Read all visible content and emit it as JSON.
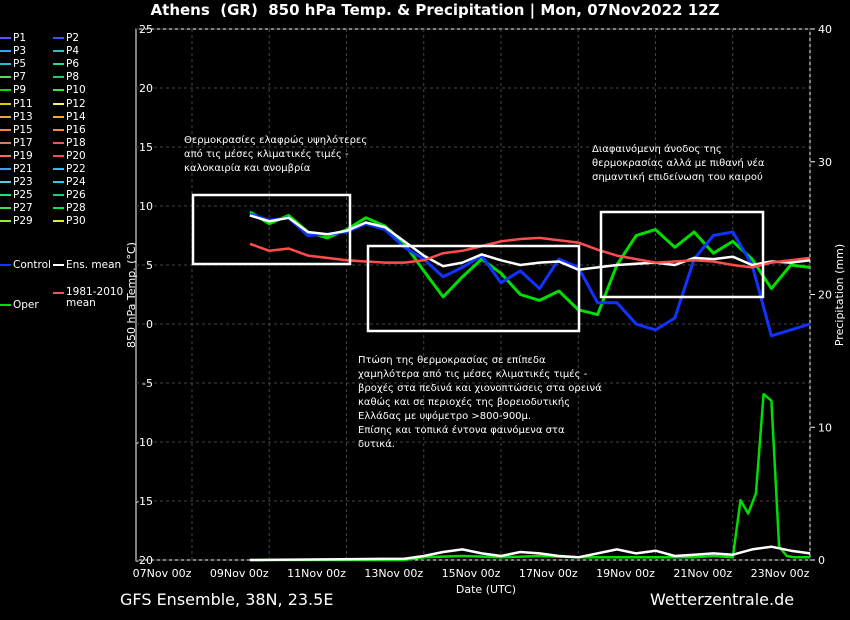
{
  "chart_data": {
    "type": "line",
    "title": "Athens  (GR)  850 hPa Temp. & Precipitation | Mon, 07Nov2022 12Z",
    "ylabel": "850 hPa Temp. (°C)",
    "y2label": "Precipitation (mm)",
    "xlabel": "Date (UTC)",
    "ylim": [
      -20,
      25
    ],
    "y2lim": [
      0,
      40
    ],
    "yticks": [
      "25",
      "20",
      "15",
      "10",
      "5",
      "0",
      "-5",
      "-10",
      "-15",
      "-20"
    ],
    "y2ticks": [
      "40",
      "30",
      "20",
      "10",
      "0"
    ],
    "xlim": [
      0,
      16
    ],
    "xticks": [
      {
        "day": 0,
        "label": "07Nov 00z"
      },
      {
        "day": 2,
        "label": "09Nov 00z"
      },
      {
        "day": 4,
        "label": "11Nov 00z"
      },
      {
        "day": 6,
        "label": "13Nov 00z"
      },
      {
        "day": 8,
        "label": "15Nov 00z"
      },
      {
        "day": 10,
        "label": "17Nov 00z"
      },
      {
        "day": 12,
        "label": "19Nov 00z"
      },
      {
        "day": 14,
        "label": "21Nov 00z"
      },
      {
        "day": 16,
        "label": "23Nov 00z"
      }
    ],
    "grid": true,
    "legend_position": "left",
    "legend": [
      "P1",
      "P2",
      "P3",
      "P4",
      "P5",
      "P6",
      "P7",
      "P8",
      "P9",
      "P10",
      "P11",
      "P12",
      "P13",
      "P14",
      "P15",
      "P16",
      "P17",
      "P18",
      "P19",
      "P20",
      "P21",
      "P22",
      "P23",
      "P24",
      "P25",
      "P26",
      "P27",
      "P28",
      "P29",
      "P30",
      "Control",
      "Ens. mean",
      "Oper",
      "1981-2010 mean"
    ],
    "series": [
      {
        "name": "Oper",
        "color": "#00dd00",
        "x": [
          1.5,
          2,
          2.5,
          3,
          3.5,
          4,
          4.5,
          5,
          5.5,
          6,
          6.5,
          7,
          7.5,
          8,
          8.5,
          9,
          9.5,
          10,
          10.5,
          11,
          11.5,
          12,
          12.5,
          13,
          13.5,
          14,
          14.5,
          15,
          15.5,
          16
        ],
        "y": [
          9.5,
          8.5,
          9.2,
          7.8,
          7.3,
          8.0,
          9.0,
          8.3,
          6.8,
          4.5,
          2.3,
          4.0,
          5.5,
          4.3,
          2.5,
          2.0,
          2.8,
          1.2,
          0.8,
          5.0,
          7.5,
          8.0,
          6.5,
          7.8,
          6.0,
          7.0,
          5.5,
          3.0,
          5.0,
          4.8
        ]
      },
      {
        "name": "Control",
        "color": "#1133ff",
        "x": [
          1.5,
          2,
          2.5,
          3,
          3.5,
          4,
          4.5,
          5,
          5.5,
          6,
          6.5,
          7,
          7.5,
          8,
          8.5,
          9,
          9.5,
          10,
          10.5,
          11,
          11.5,
          12,
          12.5,
          13,
          13.5,
          14,
          14.5,
          15,
          15.5,
          16
        ],
        "y": [
          9.3,
          8.8,
          9.0,
          7.5,
          7.6,
          7.8,
          8.5,
          8.0,
          6.5,
          5.5,
          4.0,
          4.8,
          5.8,
          3.5,
          4.5,
          3.0,
          5.5,
          4.8,
          1.8,
          1.8,
          0.0,
          -0.5,
          0.5,
          5.5,
          7.5,
          7.8,
          5.0,
          -1.0,
          -0.5,
          0.0
        ]
      },
      {
        "name": "Ens. mean",
        "color": "#ffffff",
        "x": [
          1.5,
          2,
          2.5,
          3,
          3.5,
          4,
          4.5,
          5,
          5.5,
          6,
          6.5,
          7,
          7.5,
          8,
          8.5,
          9,
          9.5,
          10,
          10.5,
          11,
          11.5,
          12,
          12.5,
          13,
          13.5,
          14,
          14.5,
          15,
          15.5,
          16
        ],
        "y": [
          9.2,
          8.7,
          9.0,
          7.8,
          7.6,
          7.9,
          8.6,
          8.2,
          7.0,
          5.8,
          4.9,
          5.2,
          5.9,
          5.4,
          5.0,
          5.2,
          5.3,
          4.6,
          4.8,
          5.0,
          5.1,
          5.2,
          5.0,
          5.6,
          5.5,
          5.7,
          5.0,
          5.3,
          5.2,
          5.4
        ]
      },
      {
        "name": "1981-2010 mean",
        "color": "#ff4d4d",
        "x": [
          1.5,
          2,
          2.5,
          3,
          3.5,
          4,
          4.5,
          5,
          5.5,
          6,
          6.5,
          7,
          7.5,
          8,
          8.5,
          9,
          9.5,
          10,
          10.5,
          11,
          11.5,
          12,
          12.5,
          13,
          13.5,
          14,
          14.5,
          15,
          15.5,
          16
        ],
        "y": [
          6.8,
          6.2,
          6.4,
          5.8,
          5.6,
          5.4,
          5.3,
          5.2,
          5.2,
          5.4,
          6.0,
          6.2,
          6.6,
          7.0,
          7.2,
          7.3,
          7.1,
          6.9,
          6.3,
          5.8,
          5.5,
          5.2,
          5.3,
          5.4,
          5.3,
          5.0,
          4.8,
          5.2,
          5.4,
          5.6
        ]
      },
      {
        "name": "Oper precipitation (mm)",
        "color": "#00dd00",
        "axis": "y2",
        "x": [
          1.5,
          5.5,
          6,
          7,
          8,
          9,
          10,
          11,
          12,
          13,
          13.5,
          14,
          14.2,
          14.4,
          14.6,
          14.8,
          15,
          15.2,
          15.4,
          15.6,
          16
        ],
        "y": [
          0,
          0,
          0.2,
          0.3,
          0.2,
          0.3,
          0.2,
          0.2,
          0.2,
          0.2,
          0.3,
          0.2,
          4.5,
          3.5,
          5.0,
          12.5,
          12.0,
          1.0,
          0.3,
          0.2,
          0.2
        ]
      },
      {
        "name": "Ens. mean precipitation (mm)",
        "color": "#ffffff",
        "axis": "y2",
        "x": [
          1.5,
          5.5,
          6,
          6.5,
          7,
          7.5,
          8,
          8.5,
          9,
          9.5,
          10,
          10.5,
          11,
          11.5,
          12,
          12.5,
          13,
          13.5,
          14,
          14.5,
          15,
          15.5,
          16
        ],
        "y": [
          0,
          0.1,
          0.3,
          0.6,
          0.8,
          0.5,
          0.3,
          0.6,
          0.5,
          0.3,
          0.2,
          0.5,
          0.8,
          0.5,
          0.7,
          0.3,
          0.4,
          0.5,
          0.4,
          0.8,
          1.0,
          0.7,
          0.5
        ]
      }
    ],
    "annotations": [
      {
        "id": "warm",
        "text": "Θερμοκρασίες ελαφρώς υψηλότερες\nαπό τις μέσες κλιματικές τιμές -\nκαλοκαιρία και ανομβρία"
      },
      {
        "id": "drop",
        "text": "Πτώση της θερμοκρασίας σε επίπεδα\nχαμηλότερα από τις μέσες κλιματικές τιμές -\nβροχές στα πεδινά και χιονοπτώσεις στα ορεινά\nκαθώς και σε περιοχές της βορειοδυτικής\nΕλλάδας με υψόμετρο >800-900μ.\nΕπίσης και τοπικά έντονα φαινόμενα στα\nδυτικά."
      },
      {
        "id": "rise",
        "text": "Διαφαινόμενη άνοδος της\nθερμοκρασίας αλλά με πιθανή νέα\nσημαντική επιδείνωση του καιρού"
      }
    ]
  },
  "footer": {
    "left": "GFS Ensemble, 38N, 23.5E",
    "right": "Wetterzentrale.de"
  },
  "legend_colors": {
    "P1": "#5555ff",
    "P2": "#3355ff",
    "P3": "#3aa0ff",
    "P4": "#33bbcc",
    "P5": "#22bbdd",
    "P6": "#22dd99",
    "P7": "#55dd55",
    "P8": "#22cc55",
    "P9": "#00dd00",
    "P10": "#33ee33",
    "P11": "#ddcc00",
    "P12": "#ffee66",
    "P13": "#ddaa33",
    "P14": "#ffaa22",
    "P15": "#ee8844",
    "P16": "#ff8833",
    "P17": "#dd7766",
    "P18": "#ee5555",
    "P19": "#ff6666",
    "P20": "#ff4455",
    "P21": "#3aa0ff",
    "P22": "#33bbee",
    "P23": "#55ccee",
    "P24": "#22ccee",
    "P25": "#22dd88",
    "P26": "#22cc77",
    "P27": "#44dd44",
    "P28": "#00ee44",
    "P29": "#99ee33",
    "P30": "#ddee22"
  }
}
